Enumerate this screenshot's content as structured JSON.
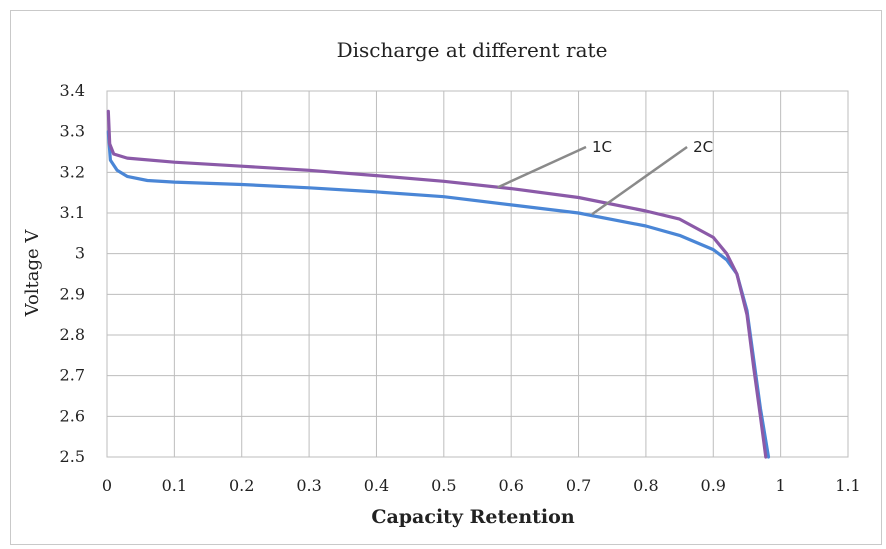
{
  "chart_data": {
    "type": "line",
    "title": "Discharge  at different rate",
    "xlabel": "Capacity Retention",
    "ylabel": "Voltage V",
    "xlim": [
      0,
      1.1
    ],
    "ylim": [
      2.5,
      3.4
    ],
    "xticks": [
      "0",
      "0.1",
      "0.2",
      "0.3",
      "0.4",
      "0.5",
      "0.6",
      "0.7",
      "0.8",
      "0.9",
      "1",
      "1.1"
    ],
    "yticks": [
      "3.4",
      "3.3",
      "3.2",
      "3.1",
      "3",
      "2.9",
      "2.8",
      "2.7",
      "2.6",
      "2.5"
    ],
    "grid": true,
    "series": [
      {
        "name": "1C",
        "color": "#8b5aa8",
        "points": [
          [
            0.002,
            3.35
          ],
          [
            0.004,
            3.27
          ],
          [
            0.01,
            3.245
          ],
          [
            0.03,
            3.235
          ],
          [
            0.1,
            3.225
          ],
          [
            0.2,
            3.215
          ],
          [
            0.3,
            3.205
          ],
          [
            0.4,
            3.192
          ],
          [
            0.5,
            3.178
          ],
          [
            0.6,
            3.16
          ],
          [
            0.7,
            3.138
          ],
          [
            0.8,
            3.105
          ],
          [
            0.85,
            3.085
          ],
          [
            0.9,
            3.04
          ],
          [
            0.92,
            3.0
          ],
          [
            0.935,
            2.95
          ],
          [
            0.95,
            2.85
          ],
          [
            0.96,
            2.72
          ],
          [
            0.97,
            2.6
          ],
          [
            0.978,
            2.5
          ]
        ]
      },
      {
        "name": "2C",
        "color": "#4a86d6",
        "points": [
          [
            0.002,
            3.3
          ],
          [
            0.005,
            3.23
          ],
          [
            0.015,
            3.205
          ],
          [
            0.03,
            3.19
          ],
          [
            0.06,
            3.18
          ],
          [
            0.1,
            3.176
          ],
          [
            0.2,
            3.17
          ],
          [
            0.3,
            3.162
          ],
          [
            0.4,
            3.152
          ],
          [
            0.5,
            3.14
          ],
          [
            0.6,
            3.12
          ],
          [
            0.7,
            3.1
          ],
          [
            0.8,
            3.068
          ],
          [
            0.85,
            3.045
          ],
          [
            0.9,
            3.01
          ],
          [
            0.92,
            2.985
          ],
          [
            0.935,
            2.95
          ],
          [
            0.95,
            2.86
          ],
          [
            0.96,
            2.74
          ],
          [
            0.97,
            2.62
          ],
          [
            0.982,
            2.5
          ]
        ]
      }
    ],
    "annotations": [
      {
        "text": "1C",
        "target": [
          0.58,
          3.163
        ],
        "label_at": [
          0.72,
          3.25
        ]
      },
      {
        "text": "2C",
        "target": [
          0.72,
          3.097
        ],
        "label_at": [
          0.87,
          3.25
        ]
      }
    ]
  }
}
